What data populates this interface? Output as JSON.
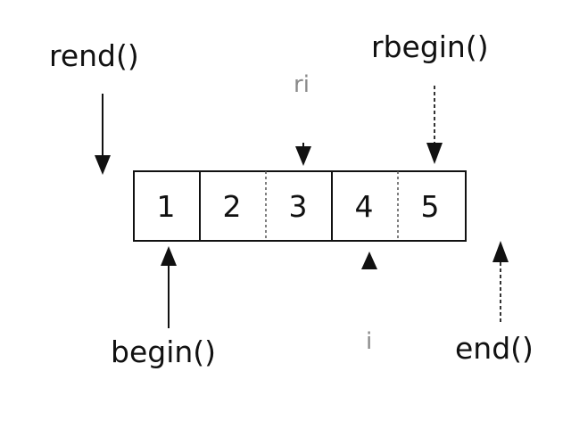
{
  "diagram": {
    "labels": {
      "rend": "rend()",
      "rbegin": "rbegin()",
      "ri": "ri",
      "begin": "begin()",
      "i": "i",
      "end": "end()"
    },
    "cells": [
      "1",
      "2",
      "3",
      "4",
      "5"
    ]
  }
}
